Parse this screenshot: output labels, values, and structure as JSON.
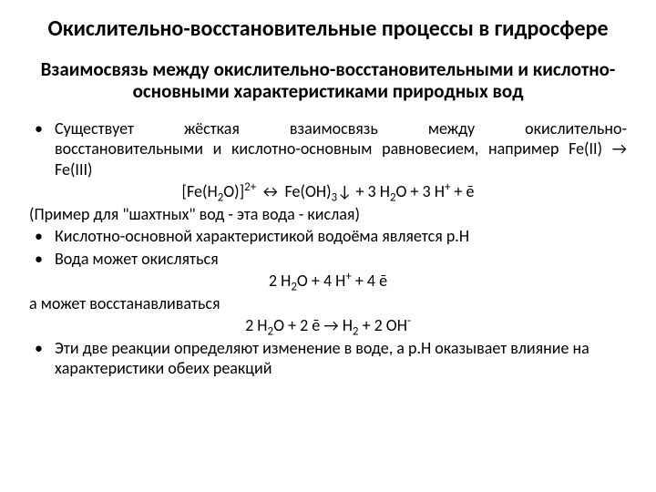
{
  "title": "Окислительно-восстановительные процессы в гидросфере",
  "subtitle": "Взаимосвязь между окислительно-восстановительными и кислотно-основными характеристиками природных вод",
  "bullet": "•",
  "p1_a": "Существует",
  "p1_b": "жёсткая",
  "p1_c": "взаимосвязь",
  "p1_d": "между",
  "p1_e": "окислительно-",
  "p1_line2": "восстановительными и кислотно-основным равновесием, например Fe(II) → Fe(III)",
  "eq1_a": "[Fe(H",
  "eq1_b": "O)]",
  "eq1_c": " ↔ Fe(OH)",
  "eq1_d": "↓ + 3 H",
  "eq1_e": "O + 3 H",
  "eq1_f": " + ē",
  "p2": "(Пример для \"шахтных\" вод - эта вода - кислая)",
  "p3": "Кислотно-основной характеристикой водоёма является p.H",
  "p4": "Вода может окисляться",
  "eq2_a": "2 H",
  "eq2_b": "O + 4 H",
  "eq2_c": " + 4 ē",
  "p5": "а может восстанавливаться",
  "eq3_a": "2 H",
  "eq3_b": "O + 2 ē →  H",
  "eq3_c": " + 2 OH",
  "p6": "Эти две реакции определяют изменение в воде, а p.H оказывает влияние на характеристики обеих реакций"
}
